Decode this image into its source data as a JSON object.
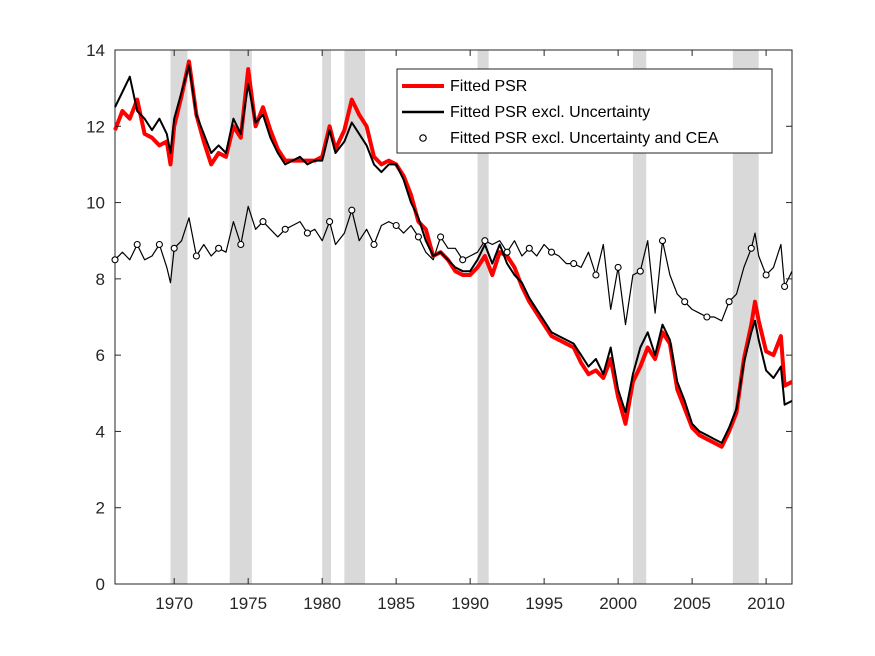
{
  "chart_data": {
    "type": "line",
    "title": "",
    "xlabel": "",
    "ylabel": "",
    "xlim": [
      1966,
      2011.75
    ],
    "ylim": [
      0,
      14
    ],
    "grid": false,
    "legend_position": "top-right",
    "x_ticks": [
      1970,
      1975,
      1980,
      1985,
      1990,
      1995,
      2000,
      2005,
      2010
    ],
    "y_ticks": [
      0,
      2,
      4,
      6,
      8,
      10,
      12,
      14
    ],
    "recession_bands": [
      [
        1969.75,
        1970.9
      ],
      [
        1973.75,
        1975.25
      ],
      [
        1980.0,
        1980.6
      ],
      [
        1981.5,
        1982.9
      ],
      [
        1990.5,
        1991.25
      ],
      [
        2001.0,
        2001.9
      ],
      [
        2007.75,
        2009.5
      ]
    ],
    "series": [
      {
        "name": "Fitted PSR",
        "color": "#ff0000",
        "points": [
          [
            1966,
            11.9
          ],
          [
            1966.5,
            12.4
          ],
          [
            1967,
            12.2
          ],
          [
            1967.5,
            12.7
          ],
          [
            1968,
            11.8
          ],
          [
            1968.5,
            11.7
          ],
          [
            1969,
            11.5
          ],
          [
            1969.5,
            11.6
          ],
          [
            1969.75,
            11.0
          ],
          [
            1970,
            12.0
          ],
          [
            1970.5,
            12.8
          ],
          [
            1971,
            13.7
          ],
          [
            1971.5,
            12.3
          ],
          [
            1972,
            11.6
          ],
          [
            1972.5,
            11.0
          ],
          [
            1973,
            11.3
          ],
          [
            1973.5,
            11.2
          ],
          [
            1974,
            12.0
          ],
          [
            1974.5,
            11.7
          ],
          [
            1975,
            13.5
          ],
          [
            1975.5,
            12.0
          ],
          [
            1976,
            12.5
          ],
          [
            1976.5,
            11.9
          ],
          [
            1977,
            11.4
          ],
          [
            1977.5,
            11.1
          ],
          [
            1978,
            11.1
          ],
          [
            1978.5,
            11.1
          ],
          [
            1979,
            11.1
          ],
          [
            1979.5,
            11.1
          ],
          [
            1980,
            11.2
          ],
          [
            1980.5,
            12.0
          ],
          [
            1980.9,
            11.4
          ],
          [
            1981.5,
            11.9
          ],
          [
            1982,
            12.7
          ],
          [
            1982.5,
            12.3
          ],
          [
            1983,
            12.0
          ],
          [
            1983.5,
            11.2
          ],
          [
            1984,
            11.0
          ],
          [
            1984.5,
            11.1
          ],
          [
            1985,
            11.0
          ],
          [
            1985.5,
            10.7
          ],
          [
            1986,
            10.2
          ],
          [
            1986.5,
            9.5
          ],
          [
            1987,
            9.3
          ],
          [
            1987.5,
            8.6
          ],
          [
            1988,
            8.7
          ],
          [
            1988.5,
            8.5
          ],
          [
            1989,
            8.2
          ],
          [
            1989.5,
            8.1
          ],
          [
            1990,
            8.1
          ],
          [
            1990.5,
            8.3
          ],
          [
            1991,
            8.6
          ],
          [
            1991.5,
            8.1
          ],
          [
            1992,
            8.7
          ],
          [
            1992.5,
            8.6
          ],
          [
            1993,
            8.3
          ],
          [
            1993.5,
            7.8
          ],
          [
            1994,
            7.4
          ],
          [
            1994.5,
            7.1
          ],
          [
            1995,
            6.8
          ],
          [
            1995.5,
            6.5
          ],
          [
            1996,
            6.4
          ],
          [
            1996.5,
            6.3
          ],
          [
            1997,
            6.2
          ],
          [
            1997.5,
            5.8
          ],
          [
            1998,
            5.5
          ],
          [
            1998.5,
            5.6
          ],
          [
            1999,
            5.4
          ],
          [
            1999.5,
            5.9
          ],
          [
            2000,
            4.9
          ],
          [
            2000.5,
            4.2
          ],
          [
            2001,
            5.3
          ],
          [
            2001.5,
            5.7
          ],
          [
            2002,
            6.2
          ],
          [
            2002.5,
            5.9
          ],
          [
            2003,
            6.6
          ],
          [
            2003.5,
            6.3
          ],
          [
            2004,
            5.1
          ],
          [
            2004.5,
            4.6
          ],
          [
            2005,
            4.1
          ],
          [
            2005.5,
            3.9
          ],
          [
            2006,
            3.8
          ],
          [
            2006.5,
            3.7
          ],
          [
            2007,
            3.6
          ],
          [
            2007.5,
            4.0
          ],
          [
            2008,
            4.5
          ],
          [
            2008.5,
            5.9
          ],
          [
            2009,
            6.8
          ],
          [
            2009.25,
            7.4
          ],
          [
            2009.5,
            6.9
          ],
          [
            2010,
            6.1
          ],
          [
            2010.5,
            6.0
          ],
          [
            2011,
            6.5
          ],
          [
            2011.25,
            5.2
          ],
          [
            2011.75,
            5.3
          ]
        ]
      },
      {
        "name": "Fitted PSR excl. Uncertainty",
        "color": "#000000",
        "points": [
          [
            1966,
            12.5
          ],
          [
            1966.5,
            12.9
          ],
          [
            1967,
            13.3
          ],
          [
            1967.5,
            12.4
          ],
          [
            1968,
            12.2
          ],
          [
            1968.5,
            11.9
          ],
          [
            1969,
            12.2
          ],
          [
            1969.5,
            11.8
          ],
          [
            1969.75,
            11.3
          ],
          [
            1970,
            12.2
          ],
          [
            1970.5,
            12.9
          ],
          [
            1971,
            13.6
          ],
          [
            1971.5,
            12.3
          ],
          [
            1972,
            11.8
          ],
          [
            1972.5,
            11.3
          ],
          [
            1973,
            11.5
          ],
          [
            1973.5,
            11.3
          ],
          [
            1974,
            12.2
          ],
          [
            1974.5,
            11.8
          ],
          [
            1975,
            13.1
          ],
          [
            1975.5,
            12.1
          ],
          [
            1976,
            12.3
          ],
          [
            1976.5,
            11.7
          ],
          [
            1977,
            11.3
          ],
          [
            1977.5,
            11.0
          ],
          [
            1978,
            11.1
          ],
          [
            1978.5,
            11.2
          ],
          [
            1979,
            11.0
          ],
          [
            1979.5,
            11.1
          ],
          [
            1980,
            11.1
          ],
          [
            1980.5,
            11.9
          ],
          [
            1980.9,
            11.3
          ],
          [
            1981.5,
            11.6
          ],
          [
            1982,
            12.1
          ],
          [
            1982.5,
            11.8
          ],
          [
            1983,
            11.5
          ],
          [
            1983.5,
            11.0
          ],
          [
            1984,
            10.8
          ],
          [
            1984.5,
            11.0
          ],
          [
            1985,
            11.0
          ],
          [
            1985.5,
            10.6
          ],
          [
            1986,
            10.0
          ],
          [
            1986.5,
            9.6
          ],
          [
            1987,
            9.0
          ],
          [
            1987.5,
            8.6
          ],
          [
            1988,
            8.7
          ],
          [
            1988.5,
            8.5
          ],
          [
            1989,
            8.3
          ],
          [
            1989.5,
            8.2
          ],
          [
            1990,
            8.2
          ],
          [
            1990.5,
            8.5
          ],
          [
            1991,
            8.9
          ],
          [
            1991.5,
            8.4
          ],
          [
            1992,
            8.9
          ],
          [
            1992.5,
            8.4
          ],
          [
            1993,
            8.1
          ],
          [
            1993.5,
            7.9
          ],
          [
            1994,
            7.5
          ],
          [
            1994.5,
            7.2
          ],
          [
            1995,
            6.9
          ],
          [
            1995.5,
            6.6
          ],
          [
            1996,
            6.5
          ],
          [
            1996.5,
            6.4
          ],
          [
            1997,
            6.3
          ],
          [
            1997.5,
            6.0
          ],
          [
            1998,
            5.7
          ],
          [
            1998.5,
            5.9
          ],
          [
            1999,
            5.5
          ],
          [
            1999.5,
            6.2
          ],
          [
            2000,
            5.1
          ],
          [
            2000.5,
            4.5
          ],
          [
            2001,
            5.5
          ],
          [
            2001.5,
            6.2
          ],
          [
            2002,
            6.6
          ],
          [
            2002.5,
            6.0
          ],
          [
            2003,
            6.8
          ],
          [
            2003.5,
            6.4
          ],
          [
            2004,
            5.3
          ],
          [
            2004.5,
            4.8
          ],
          [
            2005,
            4.2
          ],
          [
            2005.5,
            4.0
          ],
          [
            2006,
            3.9
          ],
          [
            2006.5,
            3.8
          ],
          [
            2007,
            3.7
          ],
          [
            2007.5,
            4.1
          ],
          [
            2008,
            4.6
          ],
          [
            2008.5,
            5.8
          ],
          [
            2009,
            6.6
          ],
          [
            2009.25,
            6.9
          ],
          [
            2009.5,
            6.4
          ],
          [
            2010,
            5.6
          ],
          [
            2010.5,
            5.4
          ],
          [
            2011,
            5.7
          ],
          [
            2011.25,
            4.7
          ],
          [
            2011.75,
            4.8
          ]
        ]
      },
      {
        "name": "Fitted PSR excl. Uncertainty and CEA",
        "color": "#000000",
        "points": [
          [
            1966,
            8.5
          ],
          [
            1966.5,
            8.7
          ],
          [
            1967,
            8.5
          ],
          [
            1967.5,
            8.9
          ],
          [
            1968,
            8.5
          ],
          [
            1968.5,
            8.6
          ],
          [
            1969,
            8.9
          ],
          [
            1969.5,
            8.3
          ],
          [
            1969.75,
            7.9
          ],
          [
            1970,
            8.8
          ],
          [
            1970.5,
            9.0
          ],
          [
            1971,
            9.6
          ],
          [
            1971.5,
            8.6
          ],
          [
            1972,
            8.9
          ],
          [
            1972.5,
            8.6
          ],
          [
            1973,
            8.8
          ],
          [
            1973.5,
            8.7
          ],
          [
            1974,
            9.5
          ],
          [
            1974.5,
            8.9
          ],
          [
            1975,
            9.9
          ],
          [
            1975.5,
            9.3
          ],
          [
            1976,
            9.5
          ],
          [
            1976.5,
            9.3
          ],
          [
            1977,
            9.1
          ],
          [
            1977.5,
            9.3
          ],
          [
            1978,
            9.4
          ],
          [
            1978.5,
            9.5
          ],
          [
            1979,
            9.2
          ],
          [
            1979.5,
            9.3
          ],
          [
            1980,
            9.0
          ],
          [
            1980.5,
            9.5
          ],
          [
            1980.9,
            8.9
          ],
          [
            1981.5,
            9.2
          ],
          [
            1982,
            9.8
          ],
          [
            1982.5,
            9.0
          ],
          [
            1983,
            9.3
          ],
          [
            1983.5,
            8.9
          ],
          [
            1984,
            9.4
          ],
          [
            1984.5,
            9.5
          ],
          [
            1985,
            9.4
          ],
          [
            1985.5,
            9.2
          ],
          [
            1986,
            9.4
          ],
          [
            1986.5,
            9.1
          ],
          [
            1987,
            8.7
          ],
          [
            1987.5,
            8.5
          ],
          [
            1988,
            9.1
          ],
          [
            1988.5,
            8.8
          ],
          [
            1989,
            8.8
          ],
          [
            1989.5,
            8.5
          ],
          [
            1990,
            8.6
          ],
          [
            1990.5,
            8.7
          ],
          [
            1991,
            9.0
          ],
          [
            1991.5,
            8.9
          ],
          [
            1992,
            9.0
          ],
          [
            1992.5,
            8.7
          ],
          [
            1993,
            9.0
          ],
          [
            1993.5,
            8.6
          ],
          [
            1994,
            8.8
          ],
          [
            1994.5,
            8.6
          ],
          [
            1995,
            8.9
          ],
          [
            1995.5,
            8.7
          ],
          [
            1996,
            8.6
          ],
          [
            1996.5,
            8.4
          ],
          [
            1997,
            8.4
          ],
          [
            1997.5,
            8.3
          ],
          [
            1998,
            8.7
          ],
          [
            1998.5,
            8.1
          ],
          [
            1999,
            8.9
          ],
          [
            1999.5,
            7.2
          ],
          [
            2000,
            8.3
          ],
          [
            2000.5,
            6.8
          ],
          [
            2001,
            8.1
          ],
          [
            2001.5,
            8.2
          ],
          [
            2002,
            9.0
          ],
          [
            2002.5,
            7.1
          ],
          [
            2003,
            9.0
          ],
          [
            2003.5,
            8.1
          ],
          [
            2004,
            7.6
          ],
          [
            2004.5,
            7.4
          ],
          [
            2005,
            7.2
          ],
          [
            2005.5,
            7.1
          ],
          [
            2006,
            7.0
          ],
          [
            2006.5,
            7.0
          ],
          [
            2007,
            6.9
          ],
          [
            2007.5,
            7.4
          ],
          [
            2008,
            7.6
          ],
          [
            2008.5,
            8.3
          ],
          [
            2009,
            8.8
          ],
          [
            2009.25,
            9.2
          ],
          [
            2009.5,
            8.6
          ],
          [
            2010,
            8.1
          ],
          [
            2010.5,
            8.3
          ],
          [
            2011,
            8.9
          ],
          [
            2011.25,
            7.8
          ],
          [
            2011.75,
            8.2
          ]
        ]
      }
    ]
  }
}
